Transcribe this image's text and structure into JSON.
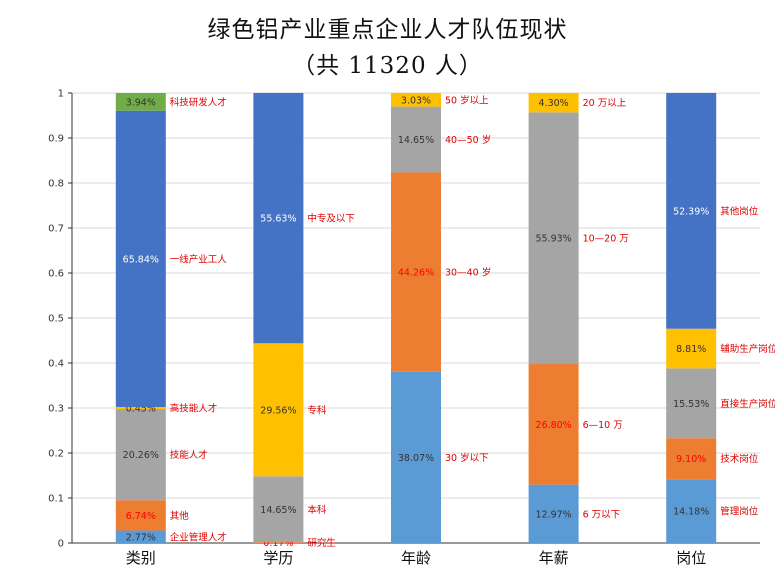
{
  "title": "绿色铝产业重点企业人才队伍现状",
  "subtitle": "（共 11320 人）",
  "chart_data": {
    "type": "bar",
    "stacked": true,
    "ylim": [
      0,
      1
    ],
    "yticks": [
      "0",
      "0.1",
      "0.2",
      "0.3",
      "0.4",
      "0.5",
      "0.6",
      "0.7",
      "0.8",
      "0.9",
      "1"
    ],
    "grid": true,
    "categories": [
      "类别",
      "学历",
      "年龄",
      "年薪",
      "岗位"
    ],
    "bars": [
      {
        "category": "类别",
        "segments": [
          {
            "label": "企业管理人才",
            "value": 0.0277,
            "value_label": "2.77%",
            "color": "#5b9bd5",
            "value_color": "#333333"
          },
          {
            "label": "其他",
            "value": 0.0674,
            "value_label": "6.74%",
            "color": "#ed7d31",
            "value_color": "#ff0000"
          },
          {
            "label": "技能人才",
            "value": 0.2026,
            "value_label": "20.26%",
            "color": "#a5a5a5",
            "value_color": "#333333"
          },
          {
            "label": "高技能人才",
            "value": 0.0045,
            "value_label": "0.45%",
            "color": "#ffc000",
            "value_color": "#333333"
          },
          {
            "label": "一线产业工人",
            "value": 0.6584,
            "value_label": "65.84%",
            "color": "#4472c4",
            "value_color": "#ffffff"
          },
          {
            "label": "科技研发人才",
            "value": 0.0394,
            "value_label": "3.94%",
            "color": "#70ad47",
            "value_color": "#333333"
          }
        ]
      },
      {
        "category": "学历",
        "segments": [
          {
            "label": "研究生",
            "value": 0.0017,
            "value_label": "0.17%",
            "color": "#ed7d31",
            "value_color": "#ff0000"
          },
          {
            "label": "本科",
            "value": 0.1465,
            "value_label": "14.65%",
            "color": "#a5a5a5",
            "value_color": "#333333"
          },
          {
            "label": "专科",
            "value": 0.2956,
            "value_label": "29.56%",
            "color": "#ffc000",
            "value_color": "#333333"
          },
          {
            "label": "中专及以下",
            "value": 0.5563,
            "value_label": "55.63%",
            "color": "#4472c4",
            "value_color": "#ffffff"
          }
        ]
      },
      {
        "category": "年龄",
        "segments": [
          {
            "label": "30 岁以下",
            "value": 0.3807,
            "value_label": "38.07%",
            "color": "#5b9bd5",
            "value_color": "#333333"
          },
          {
            "label": "30—40 岁",
            "value": 0.4426,
            "value_label": "44.26%",
            "color": "#ed7d31",
            "value_color": "#ff0000"
          },
          {
            "label": "40—50 岁",
            "value": 0.1465,
            "value_label": "14.65%",
            "color": "#a5a5a5",
            "value_color": "#333333"
          },
          {
            "label": "50 岁以上",
            "value": 0.0303,
            "value_label": "3.03%",
            "color": "#ffc000",
            "value_color": "#333333"
          }
        ]
      },
      {
        "category": "年薪",
        "segments": [
          {
            "label": "6 万以下",
            "value": 0.1297,
            "value_label": "12.97%",
            "color": "#5b9bd5",
            "value_color": "#333333"
          },
          {
            "label": "6—10 万",
            "value": 0.268,
            "value_label": "26.80%",
            "color": "#ed7d31",
            "value_color": "#ff0000"
          },
          {
            "label": "10—20 万",
            "value": 0.5593,
            "value_label": "55.93%",
            "color": "#a5a5a5",
            "value_color": "#333333"
          },
          {
            "label": "20 万以上",
            "value": 0.043,
            "value_label": "4.30%",
            "color": "#ffc000",
            "value_color": "#333333"
          }
        ]
      },
      {
        "category": "岗位",
        "segments": [
          {
            "label": "管理岗位",
            "value": 0.1418,
            "value_label": "14.18%",
            "color": "#5b9bd5",
            "value_color": "#333333"
          },
          {
            "label": "技术岗位",
            "value": 0.091,
            "value_label": "9.10%",
            "color": "#ed7d31",
            "value_color": "#ff0000"
          },
          {
            "label": "直接生产岗位",
            "value": 0.1553,
            "value_label": "15.53%",
            "color": "#a5a5a5",
            "value_color": "#333333"
          },
          {
            "label": "辅助生产岗位",
            "value": 0.0881,
            "value_label": "8.81%",
            "color": "#ffc000",
            "value_color": "#333333"
          },
          {
            "label": "其他岗位",
            "value": 0.5239,
            "value_label": "52.39%",
            "color": "#4472c4",
            "value_color": "#ffffff"
          }
        ]
      }
    ]
  }
}
